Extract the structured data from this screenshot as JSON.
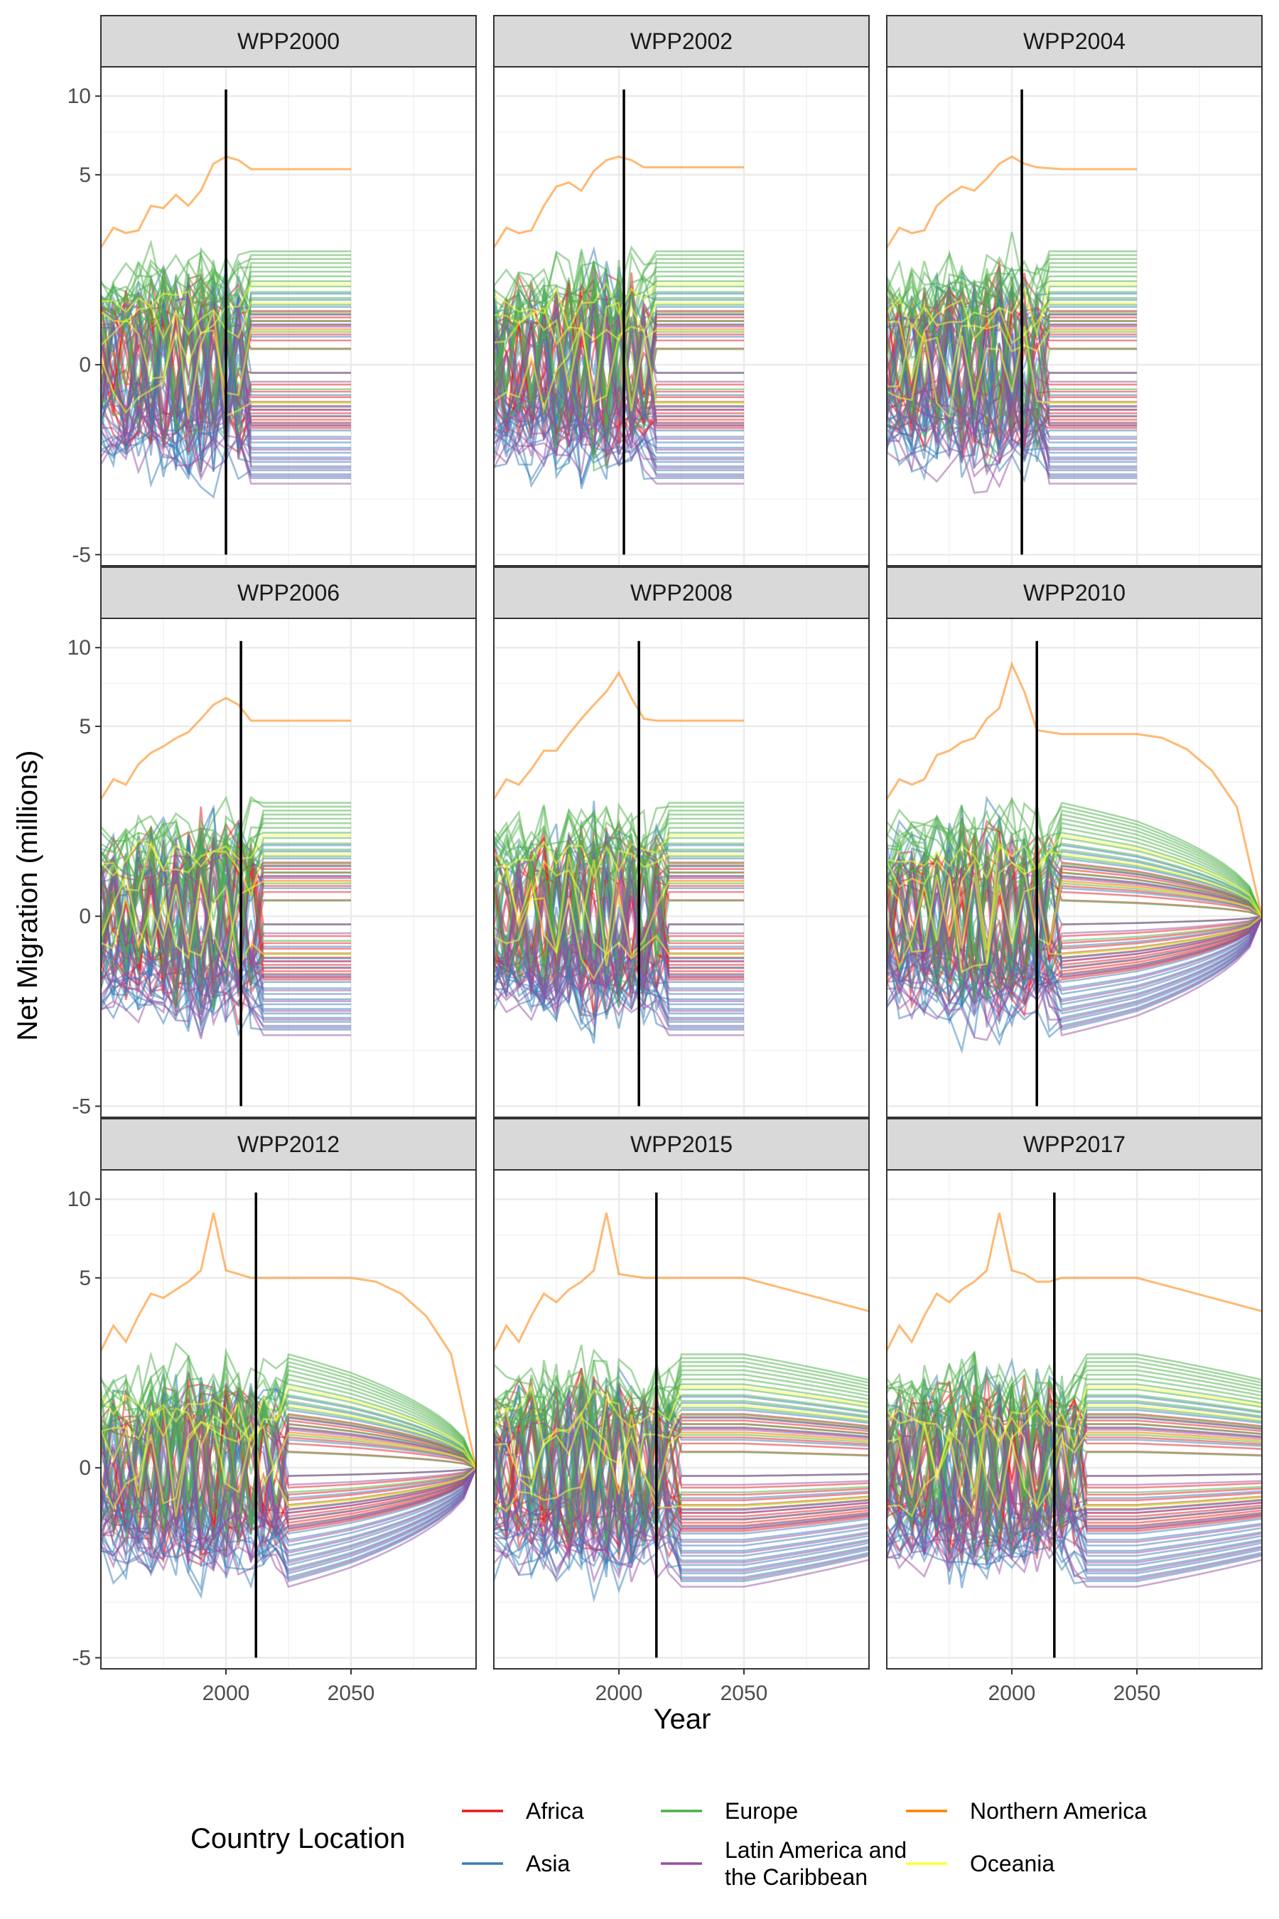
{
  "chart_data": {
    "type": "line",
    "xlabel": "Year",
    "ylabel": "Net Migration (millions)",
    "y_scale": "signed square-root (ticks at -5, 0, 5, 10)",
    "xlim": [
      1950,
      2100
    ],
    "ylim": [
      -5.6,
      12.3
    ],
    "x_ticks": [
      2000,
      2050
    ],
    "y_ticks": [
      -5,
      0,
      5,
      10
    ],
    "grid": true,
    "legend": {
      "title": "Country Location",
      "position": "bottom",
      "entries": [
        {
          "label": "Africa",
          "color": "#e41a1c"
        },
        {
          "label": "Asia",
          "color": "#377eb8"
        },
        {
          "label": "Europe",
          "color": "#4daf4a"
        },
        {
          "label": "Latin America and the Caribbean",
          "color": "#984ea3"
        },
        {
          "label": "Northern America",
          "color": "#ff7f00"
        },
        {
          "label": "Oceania",
          "color": "#ffff33"
        }
      ]
    },
    "panels": [
      {
        "title": "WPP2000",
        "vline": 2000,
        "end": 2050,
        "na": [
          [
            1950,
            1.9
          ],
          [
            1955,
            2.6
          ],
          [
            1960,
            2.4
          ],
          [
            1965,
            2.5
          ],
          [
            1970,
            3.5
          ],
          [
            1975,
            3.4
          ],
          [
            1980,
            4.0
          ],
          [
            1985,
            3.5
          ],
          [
            1990,
            4.2
          ],
          [
            1995,
            5.6
          ],
          [
            2000,
            6.0
          ],
          [
            2005,
            5.8
          ],
          [
            2010,
            5.3
          ],
          [
            2020,
            5.3
          ],
          [
            2050,
            5.3
          ]
        ],
        "na_shape": "flat"
      },
      {
        "title": "WPP2002",
        "vline": 2002,
        "end": 2050,
        "na": [
          [
            1950,
            1.9
          ],
          [
            1955,
            2.6
          ],
          [
            1960,
            2.4
          ],
          [
            1965,
            2.5
          ],
          [
            1970,
            3.5
          ],
          [
            1975,
            4.4
          ],
          [
            1980,
            4.6
          ],
          [
            1985,
            4.2
          ],
          [
            1990,
            5.2
          ],
          [
            1995,
            5.8
          ],
          [
            2000,
            6.0
          ],
          [
            2005,
            5.8
          ],
          [
            2010,
            5.4
          ],
          [
            2020,
            5.4
          ],
          [
            2050,
            5.4
          ]
        ],
        "na_shape": "flat"
      },
      {
        "title": "WPP2004",
        "vline": 2004,
        "end": 2050,
        "na": [
          [
            1950,
            1.9
          ],
          [
            1955,
            2.6
          ],
          [
            1960,
            2.4
          ],
          [
            1965,
            2.5
          ],
          [
            1970,
            3.5
          ],
          [
            1975,
            4.0
          ],
          [
            1980,
            4.4
          ],
          [
            1985,
            4.2
          ],
          [
            1990,
            4.8
          ],
          [
            1995,
            5.6
          ],
          [
            2000,
            6.0
          ],
          [
            2005,
            5.6
          ],
          [
            2010,
            5.4
          ],
          [
            2020,
            5.3
          ],
          [
            2050,
            5.3
          ]
        ],
        "na_shape": "flat"
      },
      {
        "title": "WPP2006",
        "vline": 2006,
        "end": 2050,
        "na": [
          [
            1950,
            1.9
          ],
          [
            1955,
            2.6
          ],
          [
            1960,
            2.4
          ],
          [
            1965,
            3.2
          ],
          [
            1970,
            3.7
          ],
          [
            1975,
            4.0
          ],
          [
            1980,
            4.4
          ],
          [
            1985,
            4.7
          ],
          [
            1990,
            5.4
          ],
          [
            1995,
            6.2
          ],
          [
            2000,
            6.6
          ],
          [
            2005,
            6.2
          ],
          [
            2010,
            5.3
          ],
          [
            2020,
            5.3
          ],
          [
            2050,
            5.3
          ]
        ],
        "na_shape": "flat"
      },
      {
        "title": "WPP2008",
        "vline": 2008,
        "end": 2050,
        "na": [
          [
            1950,
            1.9
          ],
          [
            1955,
            2.6
          ],
          [
            1960,
            2.4
          ],
          [
            1965,
            3.0
          ],
          [
            1970,
            3.8
          ],
          [
            1975,
            3.8
          ],
          [
            1980,
            4.6
          ],
          [
            1985,
            5.4
          ],
          [
            1990,
            6.2
          ],
          [
            1995,
            7.0
          ],
          [
            2000,
            8.2
          ],
          [
            2005,
            6.6
          ],
          [
            2010,
            5.4
          ],
          [
            2015,
            5.3
          ],
          [
            2050,
            5.3
          ]
        ],
        "na_shape": "flat"
      },
      {
        "title": "WPP2010",
        "vline": 2010,
        "end": 2100,
        "na": [
          [
            1950,
            1.9
          ],
          [
            1955,
            2.6
          ],
          [
            1960,
            2.4
          ],
          [
            1965,
            2.6
          ],
          [
            1970,
            3.6
          ],
          [
            1975,
            3.8
          ],
          [
            1980,
            4.2
          ],
          [
            1985,
            4.4
          ],
          [
            1990,
            5.4
          ],
          [
            1995,
            6.0
          ],
          [
            2000,
            8.8
          ],
          [
            2005,
            7.0
          ],
          [
            2010,
            4.8
          ],
          [
            2020,
            4.6
          ],
          [
            2050,
            4.6
          ]
        ],
        "na_shape": "taper"
      },
      {
        "title": "WPP2012",
        "vline": 2012,
        "end": 2100,
        "na": [
          [
            1950,
            1.9
          ],
          [
            1955,
            2.8
          ],
          [
            1960,
            2.2
          ],
          [
            1965,
            3.2
          ],
          [
            1970,
            4.2
          ],
          [
            1975,
            4.0
          ],
          [
            1980,
            4.4
          ],
          [
            1985,
            4.8
          ],
          [
            1990,
            5.4
          ],
          [
            1995,
            9.0
          ],
          [
            2000,
            5.4
          ],
          [
            2005,
            5.2
          ],
          [
            2010,
            5.0
          ],
          [
            2020,
            5.0
          ],
          [
            2050,
            5.0
          ]
        ],
        "na_shape": "taper"
      },
      {
        "title": "WPP2015",
        "vline": 2015,
        "end": 2100,
        "na": [
          [
            1950,
            1.9
          ],
          [
            1955,
            2.8
          ],
          [
            1960,
            2.2
          ],
          [
            1965,
            3.2
          ],
          [
            1970,
            4.2
          ],
          [
            1975,
            3.8
          ],
          [
            1980,
            4.4
          ],
          [
            1985,
            4.8
          ],
          [
            1990,
            5.4
          ],
          [
            1995,
            9.0
          ],
          [
            2000,
            5.2
          ],
          [
            2010,
            5.0
          ],
          [
            2020,
            5.0
          ],
          [
            2050,
            5.0
          ],
          [
            2100,
            3.4
          ]
        ],
        "na_shape": "linear"
      },
      {
        "title": "WPP2017",
        "vline": 2017,
        "end": 2100,
        "na": [
          [
            1950,
            1.9
          ],
          [
            1955,
            2.8
          ],
          [
            1960,
            2.2
          ],
          [
            1965,
            3.2
          ],
          [
            1970,
            4.2
          ],
          [
            1975,
            3.8
          ],
          [
            1980,
            4.4
          ],
          [
            1985,
            4.8
          ],
          [
            1990,
            5.4
          ],
          [
            1995,
            9.0
          ],
          [
            2000,
            5.4
          ],
          [
            2005,
            5.2
          ],
          [
            2010,
            4.8
          ],
          [
            2015,
            4.8
          ],
          [
            2020,
            5.0
          ],
          [
            2050,
            5.0
          ],
          [
            2100,
            3.4
          ]
        ],
        "na_shape": "linear"
      }
    ]
  }
}
